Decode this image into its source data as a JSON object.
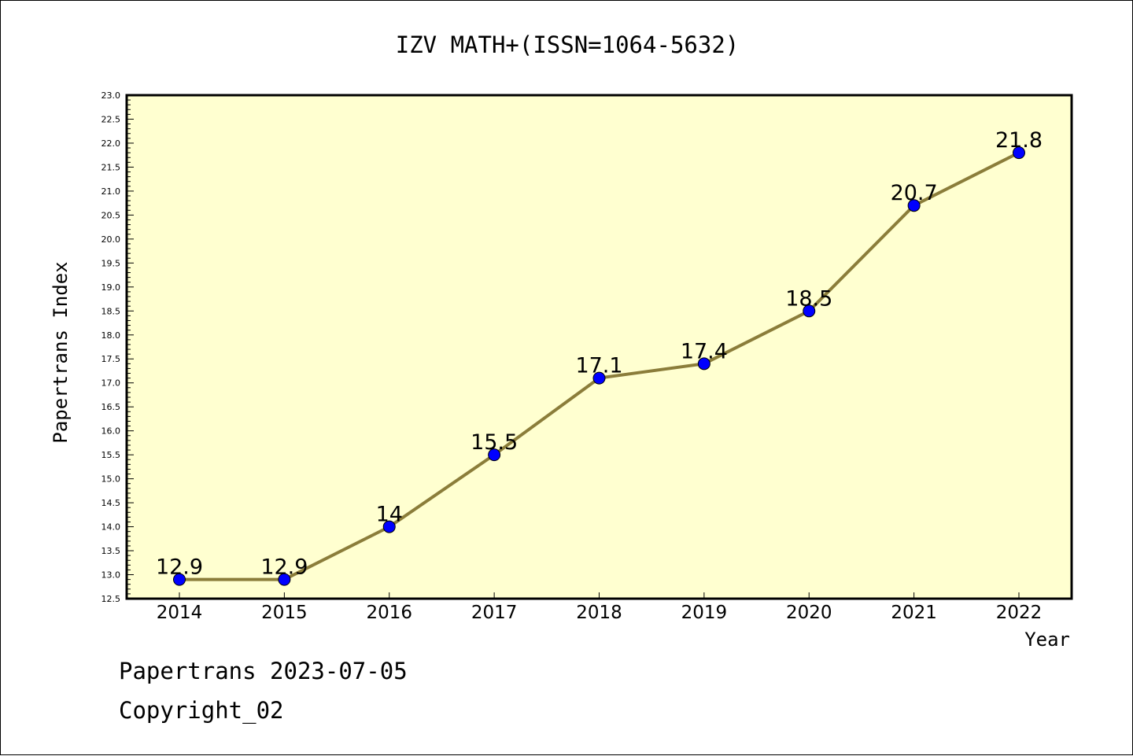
{
  "chart_data": {
    "type": "line",
    "title": "IZV MATH+(ISSN=1064-5632)",
    "xlabel": "Year",
    "ylabel": "Papertrans Index",
    "x": [
      "2014",
      "2015",
      "2016",
      "2017",
      "2018",
      "2019",
      "2020",
      "2021",
      "2022"
    ],
    "series": [
      {
        "values": [
          12.9,
          12.9,
          14,
          15.5,
          17.1,
          17.4,
          18.5,
          20.7,
          21.8
        ],
        "data_labels": [
          "12.9",
          "12.9",
          "14",
          "15.5",
          "17.1",
          "17.4",
          "18.5",
          "20.7",
          "21.8"
        ],
        "line_color": "#8b7d3a",
        "marker_color": "#0000ff"
      }
    ],
    "ylim": [
      12.5,
      23.0
    ],
    "yticks": [
      "12.5",
      "13.0",
      "13.5",
      "14.0",
      "14.5",
      "15.0",
      "15.5",
      "16.0",
      "16.5",
      "17.0",
      "17.5",
      "18.0",
      "18.5",
      "19.0",
      "19.5",
      "20.0",
      "20.5",
      "21.0",
      "21.5",
      "22.0",
      "22.5",
      "23.0"
    ],
    "plot_background": "#ffffd0",
    "grid": false,
    "legend": "none"
  },
  "footer": {
    "line1": "Papertrans 2023-07-05",
    "line2": "Copyright_02"
  }
}
